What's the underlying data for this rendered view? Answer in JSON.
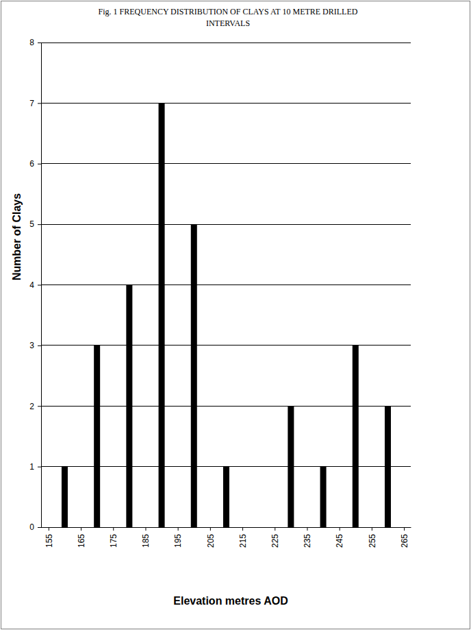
{
  "chart_data": {
    "type": "bar",
    "title": "Fig. 1 FREQUENCY DISTRIBUTION OF CLAYS AT 10 METRE DRILLED INTERVALS",
    "x_label": "Elevation metres AOD",
    "y_label": "Number of Clays",
    "x": [
      160,
      170,
      180,
      190,
      200,
      210,
      220,
      230,
      240,
      250,
      260
    ],
    "values": [
      1,
      3,
      4,
      7,
      5,
      1,
      0,
      2,
      1,
      3,
      2
    ],
    "color": "#000000",
    "xlim": [
      152.7,
      267.1
    ],
    "xticks": [
      155,
      165,
      175,
      185,
      195,
      205,
      215,
      225,
      235,
      245,
      255,
      265
    ],
    "ylim": [
      0,
      8
    ],
    "yticks": [
      0,
      1,
      2,
      3,
      4,
      5,
      6,
      7,
      8
    ],
    "grid": true
  }
}
